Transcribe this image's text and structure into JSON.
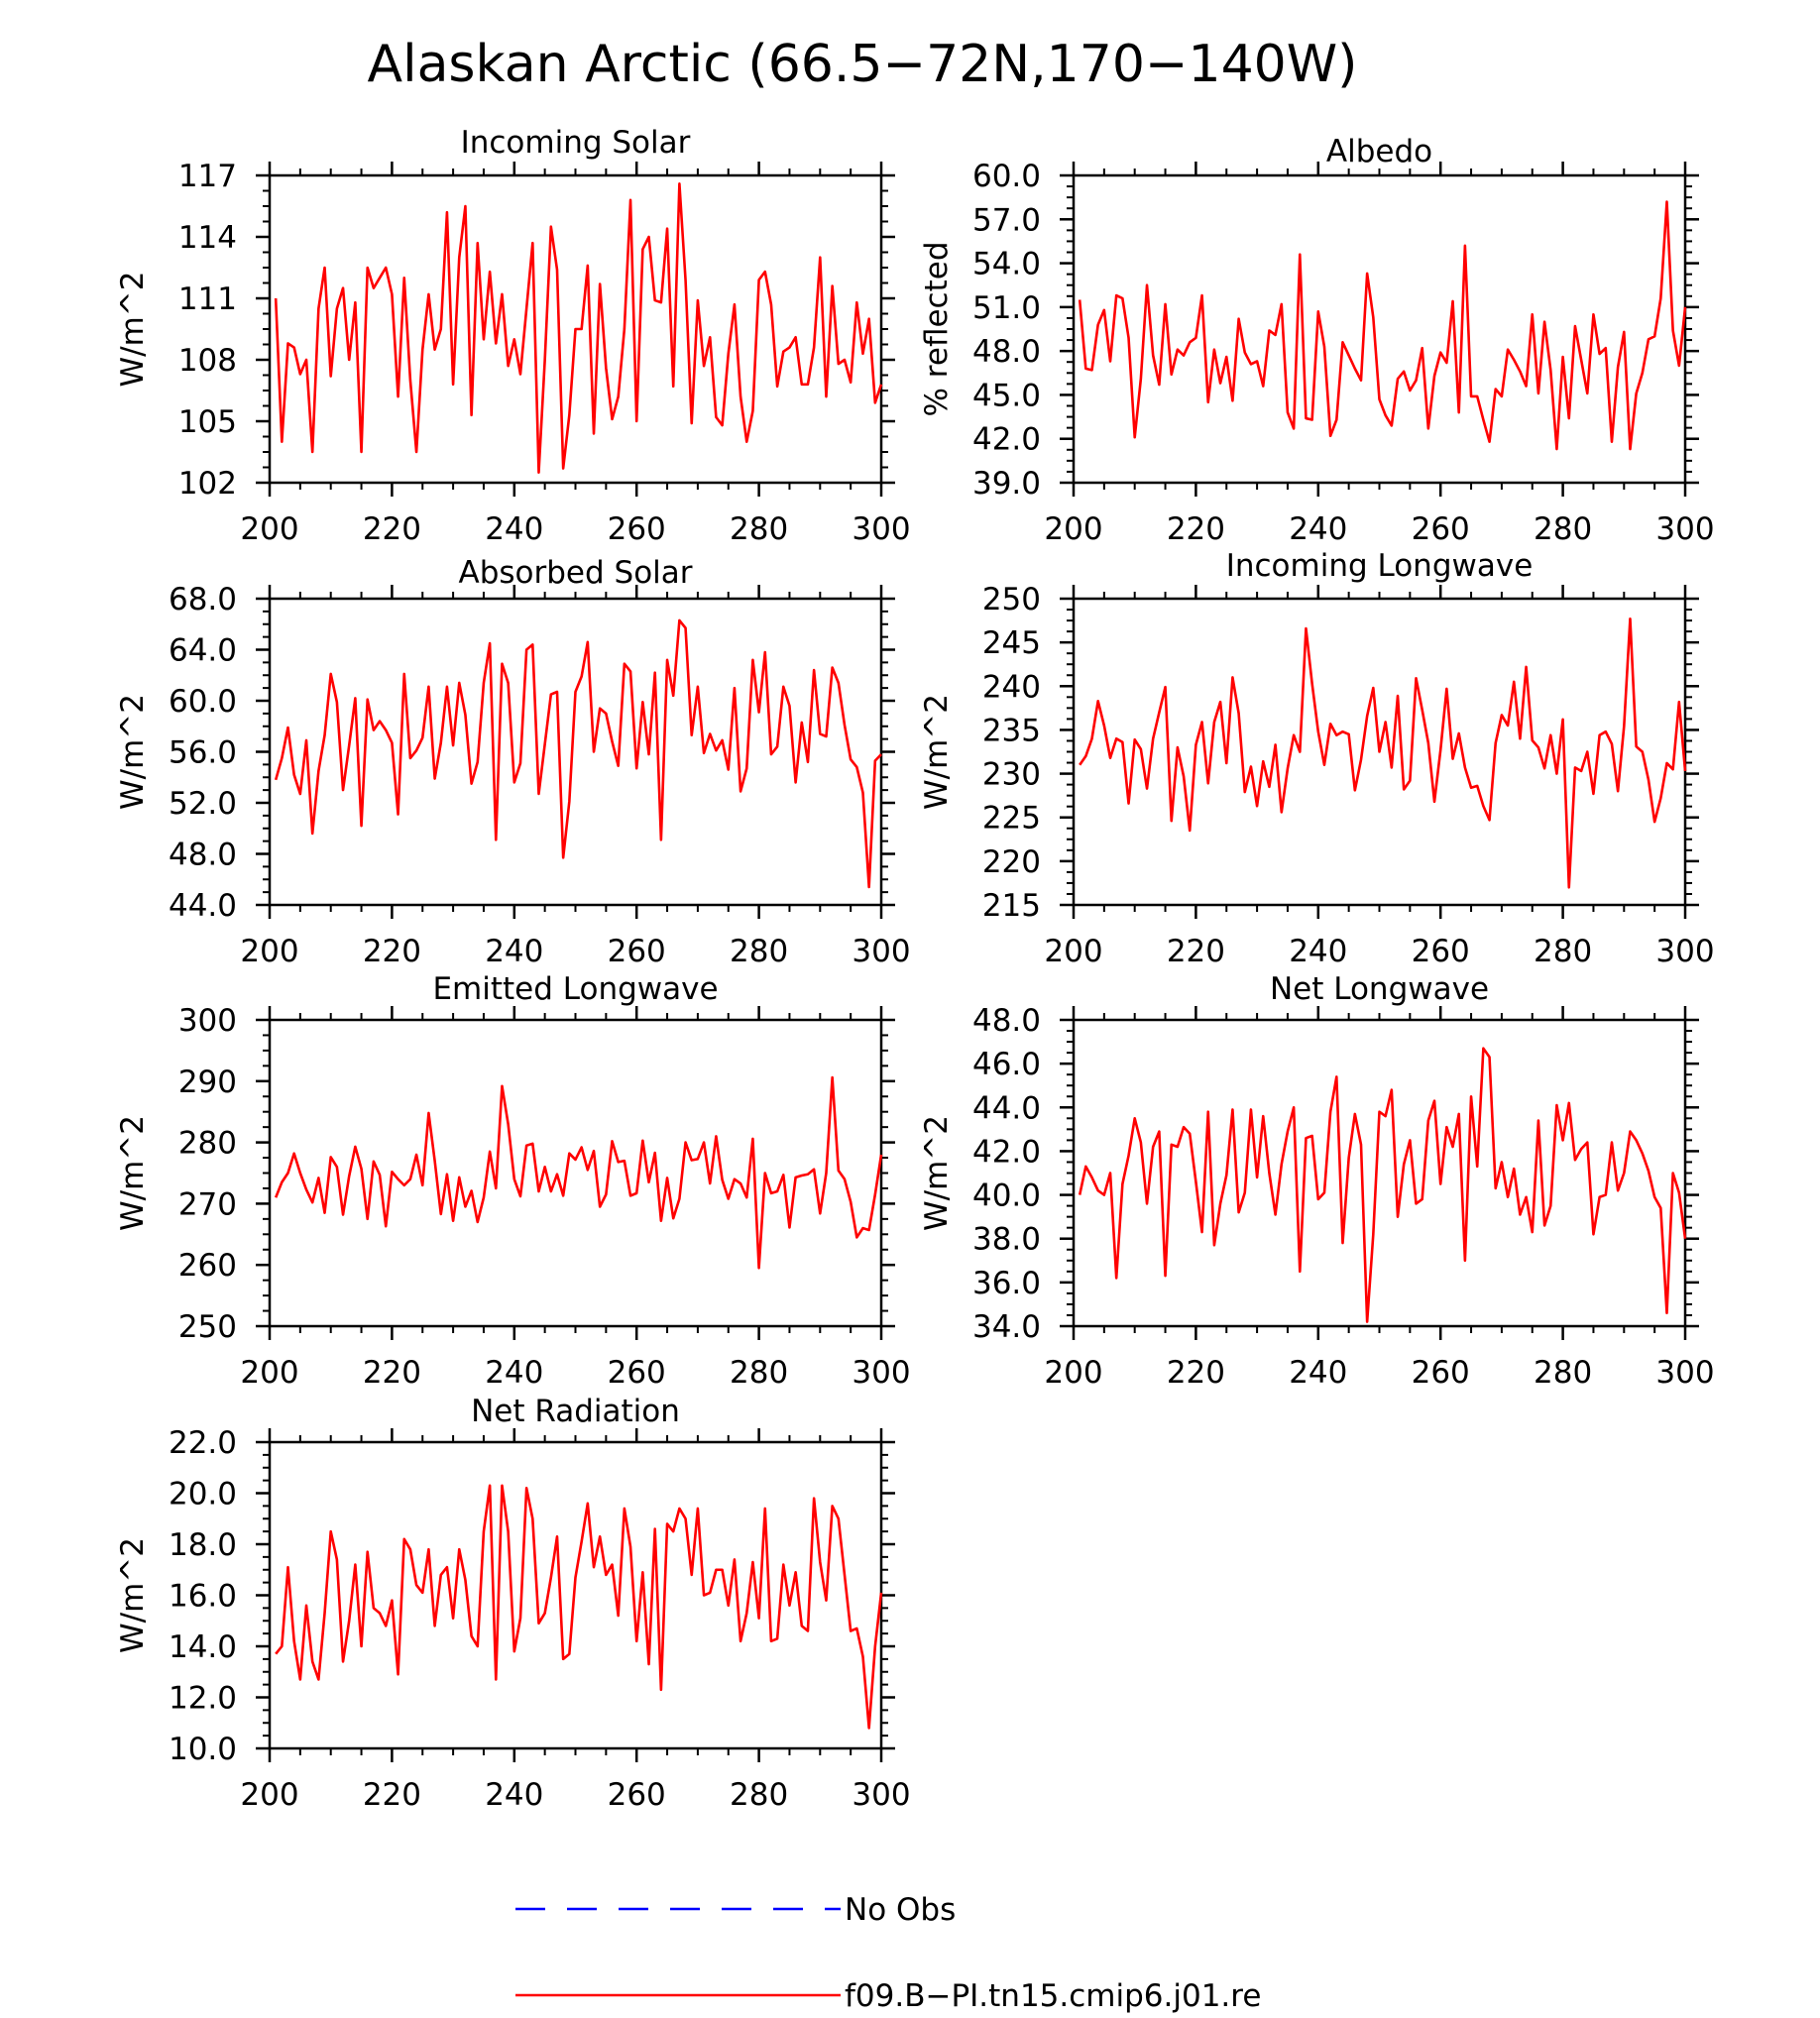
{
  "figure_title": "Alaskan Arctic (66.5−72N,170−140W)",
  "legend": [
    {
      "label": "No Obs",
      "color": "#0000ff",
      "style": "dashed"
    },
    {
      "label": "f09.B−PI.tn15.cmip6.j01.re",
      "color": "#ff0000",
      "style": "solid"
    }
  ],
  "chart_data": [
    {
      "type": "line",
      "title": "Incoming Solar",
      "ylabel": "W/m^2",
      "xlim": [
        200,
        300
      ],
      "ylim": [
        102,
        117
      ],
      "xticks": [
        200,
        220,
        240,
        260,
        280,
        300
      ],
      "xtick_labels": [
        "200",
        "220",
        "240",
        "260",
        "280",
        "300"
      ],
      "yticks": [
        102,
        105,
        108,
        111,
        114,
        117
      ],
      "ytick_labels": [
        "102",
        "105",
        "108",
        "111",
        "114",
        "117"
      ],
      "grid": false,
      "x_start": 201,
      "series": [
        {
          "color": "#ff0000",
          "values": [
            111.0,
            104.0,
            108.8,
            108.6,
            107.3,
            108.0,
            103.5,
            110.5,
            112.5,
            107.2,
            110.5,
            111.5,
            108.0,
            110.8,
            103.5,
            112.5,
            111.5,
            112.0,
            112.5,
            111.2,
            106.2,
            112.0,
            107.0,
            103.5,
            108.5,
            111.2,
            108.5,
            109.5,
            115.2,
            106.8,
            113.0,
            115.5,
            105.3,
            113.7,
            109.0,
            112.3,
            108.8,
            111.2,
            107.7,
            109.0,
            107.3,
            110.5,
            113.7,
            102.5,
            108.0,
            114.5,
            112.4,
            102.7,
            105.3,
            109.5,
            109.5,
            112.6,
            104.4,
            111.7,
            107.6,
            105.1,
            106.2,
            109.5,
            115.8,
            105.0,
            113.4,
            114.0,
            110.9,
            110.8,
            114.4,
            106.7,
            116.6,
            111.9,
            104.9,
            110.9,
            107.7,
            109.1,
            105.2,
            104.8,
            108.3,
            110.7,
            106.2,
            104.0,
            105.5,
            111.9,
            112.3,
            110.7,
            106.7,
            108.4,
            108.6,
            109.1,
            106.8,
            106.8,
            108.6,
            113.0,
            106.2,
            111.6,
            107.8,
            108.0,
            106.9,
            110.8,
            108.3,
            110.0,
            105.9,
            106.8
          ]
        }
      ]
    },
    {
      "type": "line",
      "title": "Albedo",
      "ylabel": "% reflected",
      "xlim": [
        200,
        300
      ],
      "ylim": [
        39.0,
        60.0
      ],
      "xticks": [
        200,
        220,
        240,
        260,
        280,
        300
      ],
      "xtick_labels": [
        "200",
        "220",
        "240",
        "260",
        "280",
        "300"
      ],
      "yticks": [
        39.0,
        42.0,
        45.0,
        48.0,
        51.0,
        54.0,
        57.0,
        60.0
      ],
      "ytick_labels": [
        "39.0",
        "42.0",
        "45.0",
        "48.0",
        "51.0",
        "54.0",
        "57.0",
        "60.0"
      ],
      "grid": false,
      "x_start": 201,
      "series": [
        {
          "color": "#ff0000",
          "values": [
            51.5,
            46.8,
            46.7,
            49.8,
            50.8,
            47.3,
            51.8,
            51.6,
            48.9,
            42.1,
            46.1,
            52.5,
            47.7,
            45.7,
            51.2,
            46.4,
            48.1,
            47.7,
            48.6,
            48.9,
            51.8,
            44.5,
            48.1,
            45.8,
            47.6,
            44.6,
            50.2,
            47.9,
            47.1,
            47.3,
            45.6,
            49.4,
            49.1,
            51.2,
            43.8,
            42.7,
            54.6,
            43.4,
            43.3,
            50.7,
            48.3,
            42.2,
            43.3,
            48.6,
            47.7,
            46.8,
            46.0,
            53.3,
            50.3,
            44.7,
            43.6,
            42.9,
            46.1,
            46.6,
            45.3,
            46.0,
            48.2,
            42.7,
            46.3,
            47.9,
            47.2,
            51.4,
            43.8,
            55.2,
            44.9,
            44.9,
            43.3,
            41.8,
            45.4,
            44.9,
            48.1,
            47.4,
            46.6,
            45.6,
            50.5,
            45.1,
            50.0,
            46.7,
            41.3,
            47.6,
            43.4,
            49.7,
            47.4,
            45.1,
            50.5,
            47.8,
            48.2,
            41.8,
            46.9,
            49.3,
            41.3,
            45.1,
            46.5,
            48.8,
            49.0,
            51.6,
            58.2,
            49.4,
            47.0,
            51.0
          ]
        }
      ]
    },
    {
      "type": "line",
      "title": "Absorbed Solar",
      "ylabel": "W/m^2",
      "xlim": [
        200,
        300
      ],
      "ylim": [
        44.0,
        68.0
      ],
      "xticks": [
        200,
        220,
        240,
        260,
        280,
        300
      ],
      "xtick_labels": [
        "200",
        "220",
        "240",
        "260",
        "280",
        "300"
      ],
      "yticks": [
        44.0,
        48.0,
        52.0,
        56.0,
        60.0,
        64.0,
        68.0
      ],
      "ytick_labels": [
        "44.0",
        "48.0",
        "52.0",
        "56.0",
        "60.0",
        "64.0",
        "68.0"
      ],
      "grid": false,
      "x_start": 201,
      "series": [
        {
          "color": "#ff0000",
          "values": [
            53.8,
            55.5,
            57.9,
            54.2,
            52.7,
            56.9,
            49.6,
            54.5,
            57.3,
            62.1,
            59.9,
            53.0,
            56.5,
            60.2,
            50.2,
            60.1,
            57.7,
            58.4,
            57.7,
            56.7,
            51.1,
            62.1,
            55.5,
            56.1,
            57.1,
            61.1,
            53.9,
            56.7,
            61.1,
            56.5,
            61.4,
            58.9,
            53.5,
            55.2,
            61.4,
            64.5,
            49.1,
            62.9,
            61.4,
            53.6,
            55.1,
            64.0,
            64.4,
            52.7,
            56.6,
            60.5,
            60.7,
            47.7,
            52.1,
            60.7,
            61.9,
            64.6,
            56.0,
            59.4,
            59.0,
            56.8,
            54.9,
            62.9,
            62.3,
            54.7,
            59.9,
            55.8,
            62.2,
            49.1,
            63.2,
            60.4,
            66.3,
            65.7,
            57.3,
            61.1,
            55.9,
            57.4,
            56.1,
            56.9,
            54.6,
            61.0,
            52.9,
            54.7,
            63.2,
            59.1,
            63.8,
            55.8,
            56.4,
            61.1,
            59.6,
            53.6,
            58.3,
            55.2,
            62.4,
            57.4,
            57.2,
            62.6,
            61.4,
            58.1,
            55.4,
            54.8,
            52.8,
            45.4,
            55.3,
            55.8
          ]
        }
      ]
    },
    {
      "type": "line",
      "title": "Incoming Longwave",
      "ylabel": "W/m^2",
      "xlim": [
        200,
        300
      ],
      "ylim": [
        215,
        250
      ],
      "xticks": [
        200,
        220,
        240,
        260,
        280,
        300
      ],
      "xtick_labels": [
        "200",
        "220",
        "240",
        "260",
        "280",
        "300"
      ],
      "yticks": [
        215,
        220,
        225,
        230,
        235,
        240,
        245,
        250
      ],
      "ytick_labels": [
        "215",
        "220",
        "225",
        "230",
        "235",
        "240",
        "245",
        "250"
      ],
      "grid": false,
      "x_start": 201,
      "series": [
        {
          "color": "#ff0000",
          "values": [
            231.0,
            232.0,
            234.0,
            238.3,
            235.5,
            231.8,
            234.0,
            233.6,
            226.6,
            233.9,
            232.8,
            228.3,
            234.0,
            237.0,
            239.9,
            224.6,
            233.0,
            229.7,
            223.5,
            233.3,
            235.9,
            228.9,
            235.9,
            238.2,
            231.2,
            241.0,
            236.9,
            227.9,
            230.8,
            226.3,
            231.4,
            228.5,
            233.3,
            225.6,
            230.6,
            234.4,
            232.5,
            246.6,
            240.3,
            234.8,
            231.0,
            235.7,
            234.4,
            234.8,
            234.5,
            228.1,
            231.6,
            236.6,
            239.8,
            232.5,
            235.9,
            230.7,
            238.9,
            228.2,
            229.2,
            240.9,
            237.3,
            233.5,
            226.8,
            232.7,
            239.7,
            231.7,
            234.6,
            230.7,
            228.4,
            228.6,
            226.3,
            224.7,
            233.5,
            236.7,
            235.5,
            240.5,
            234.0,
            242.2,
            233.8,
            233.0,
            230.6,
            234.4,
            230.0,
            236.2,
            217.0,
            230.7,
            230.3,
            232.5,
            227.7,
            234.4,
            234.8,
            233.4,
            228.0,
            235.4,
            247.7,
            233.1,
            232.5,
            229.3,
            224.5,
            227.2,
            231.2,
            230.5,
            238.2,
            230.3
          ]
        }
      ]
    },
    {
      "type": "line",
      "title": "Emitted Longwave",
      "ylabel": "W/m^2",
      "xlim": [
        200,
        300
      ],
      "ylim": [
        250,
        300
      ],
      "xticks": [
        200,
        220,
        240,
        260,
        280,
        300
      ],
      "xtick_labels": [
        "200",
        "220",
        "240",
        "260",
        "280",
        "300"
      ],
      "yticks": [
        250,
        260,
        270,
        280,
        290,
        300
      ],
      "ytick_labels": [
        "250",
        "260",
        "270",
        "280",
        "290",
        "300"
      ],
      "grid": false,
      "x_start": 201,
      "series": [
        {
          "color": "#ff0000",
          "values": [
            271.0,
            273.5,
            275.0,
            278.2,
            275.0,
            272.3,
            270.2,
            274.2,
            268.5,
            277.6,
            276.0,
            268.2,
            274.5,
            279.3,
            275.7,
            267.5,
            276.9,
            274.7,
            266.3,
            275.2,
            274.0,
            273.0,
            274.0,
            278.0,
            273.0,
            284.8,
            277.0,
            268.3,
            274.8,
            267.2,
            274.3,
            269.5,
            272.1,
            267.0,
            271.0,
            278.5,
            272.5,
            289.2,
            283.0,
            274.0,
            271.2,
            279.5,
            279.8,
            272.0,
            276.0,
            272.0,
            274.8,
            271.3,
            278.2,
            277.2,
            279.2,
            275.5,
            278.6,
            269.5,
            271.5,
            280.2,
            276.8,
            277.0,
            271.3,
            271.7,
            280.3,
            273.5,
            278.3,
            267.2,
            274.2,
            267.6,
            270.8,
            280.0,
            277.1,
            277.3,
            280.0,
            273.3,
            281.0,
            273.9,
            270.8,
            274.0,
            273.3,
            271.0,
            280.6,
            259.5,
            275.0,
            271.7,
            272.0,
            274.7,
            266.1,
            274.3,
            274.6,
            274.8,
            275.6,
            268.4,
            275.0,
            290.6,
            275.4,
            274.0,
            270.3,
            264.5,
            266.0,
            265.7,
            271.5,
            278.0
          ]
        }
      ]
    },
    {
      "type": "line",
      "title": "Net Longwave",
      "ylabel": "W/m^2",
      "xlim": [
        200,
        300
      ],
      "ylim": [
        34.0,
        48.0
      ],
      "xticks": [
        200,
        220,
        240,
        260,
        280,
        300
      ],
      "xtick_labels": [
        "200",
        "220",
        "240",
        "260",
        "280",
        "300"
      ],
      "yticks": [
        34.0,
        36.0,
        38.0,
        40.0,
        42.0,
        44.0,
        46.0,
        48.0
      ],
      "ytick_labels": [
        "34.0",
        "36.0",
        "38.0",
        "40.0",
        "42.0",
        "44.0",
        "46.0",
        "48.0"
      ],
      "grid": false,
      "x_start": 201,
      "series": [
        {
          "color": "#ff0000",
          "values": [
            40.0,
            41.3,
            40.8,
            40.2,
            40.0,
            41.0,
            36.2,
            40.5,
            41.8,
            43.5,
            42.4,
            39.6,
            42.2,
            42.9,
            36.3,
            42.3,
            42.2,
            43.1,
            42.8,
            40.6,
            38.3,
            43.8,
            37.7,
            39.6,
            40.9,
            43.9,
            39.2,
            40.1,
            43.9,
            40.8,
            43.6,
            41.0,
            39.1,
            41.4,
            42.9,
            44.0,
            36.5,
            42.6,
            42.7,
            39.8,
            40.1,
            43.8,
            45.4,
            37.8,
            41.7,
            43.7,
            42.3,
            34.2,
            38.2,
            43.8,
            43.6,
            44.8,
            39.0,
            41.4,
            42.5,
            39.6,
            39.8,
            43.4,
            44.3,
            40.5,
            43.1,
            42.2,
            43.7,
            37.0,
            44.5,
            41.3,
            46.7,
            46.3,
            40.3,
            41.5,
            39.9,
            41.2,
            39.1,
            39.9,
            38.3,
            43.4,
            38.6,
            39.5,
            44.1,
            42.5,
            44.2,
            41.6,
            42.1,
            42.4,
            38.2,
            39.9,
            40.0,
            42.4,
            40.2,
            41.0,
            42.9,
            42.5,
            41.9,
            41.1,
            39.9,
            39.4,
            34.6,
            41.0,
            40.1,
            38.0
          ]
        }
      ]
    },
    {
      "type": "line",
      "title": "Net Radiation",
      "ylabel": "W/m^2",
      "xlim": [
        200,
        300
      ],
      "ylim": [
        10.0,
        22.0
      ],
      "xticks": [
        200,
        220,
        240,
        260,
        280,
        300
      ],
      "xtick_labels": [
        "200",
        "220",
        "240",
        "260",
        "280",
        "300"
      ],
      "yticks": [
        10.0,
        12.0,
        14.0,
        16.0,
        18.0,
        20.0,
        22.0
      ],
      "ytick_labels": [
        "10.0",
        "12.0",
        "14.0",
        "16.0",
        "18.0",
        "20.0",
        "22.0"
      ],
      "grid": false,
      "x_start": 201,
      "series": [
        {
          "color": "#ff0000",
          "values": [
            13.7,
            14.0,
            17.1,
            14.2,
            12.7,
            15.6,
            13.4,
            12.7,
            15.3,
            18.5,
            17.4,
            13.4,
            15.0,
            17.2,
            14.0,
            17.7,
            15.5,
            15.3,
            14.8,
            15.8,
            12.9,
            18.2,
            17.8,
            16.4,
            16.1,
            17.8,
            14.8,
            16.8,
            17.1,
            15.1,
            17.8,
            16.6,
            14.4,
            14.0,
            18.5,
            20.3,
            12.7,
            20.3,
            18.5,
            13.8,
            15.1,
            20.2,
            19.0,
            14.9,
            15.3,
            16.7,
            18.3,
            13.5,
            13.7,
            16.7,
            18.1,
            19.6,
            17.1,
            18.3,
            16.8,
            17.2,
            15.2,
            19.4,
            17.9,
            14.2,
            16.9,
            13.3,
            18.6,
            12.3,
            18.8,
            18.5,
            19.4,
            19.0,
            16.8,
            19.4,
            16.0,
            16.1,
            17.0,
            17.0,
            15.6,
            17.4,
            14.2,
            15.3,
            17.3,
            15.1,
            19.4,
            14.2,
            14.3,
            17.2,
            15.6,
            16.9,
            14.8,
            14.6,
            19.8,
            17.3,
            15.8,
            19.5,
            19.0,
            16.8,
            14.6,
            14.7,
            13.6,
            10.8,
            14.0,
            16.1
          ]
        }
      ]
    }
  ]
}
